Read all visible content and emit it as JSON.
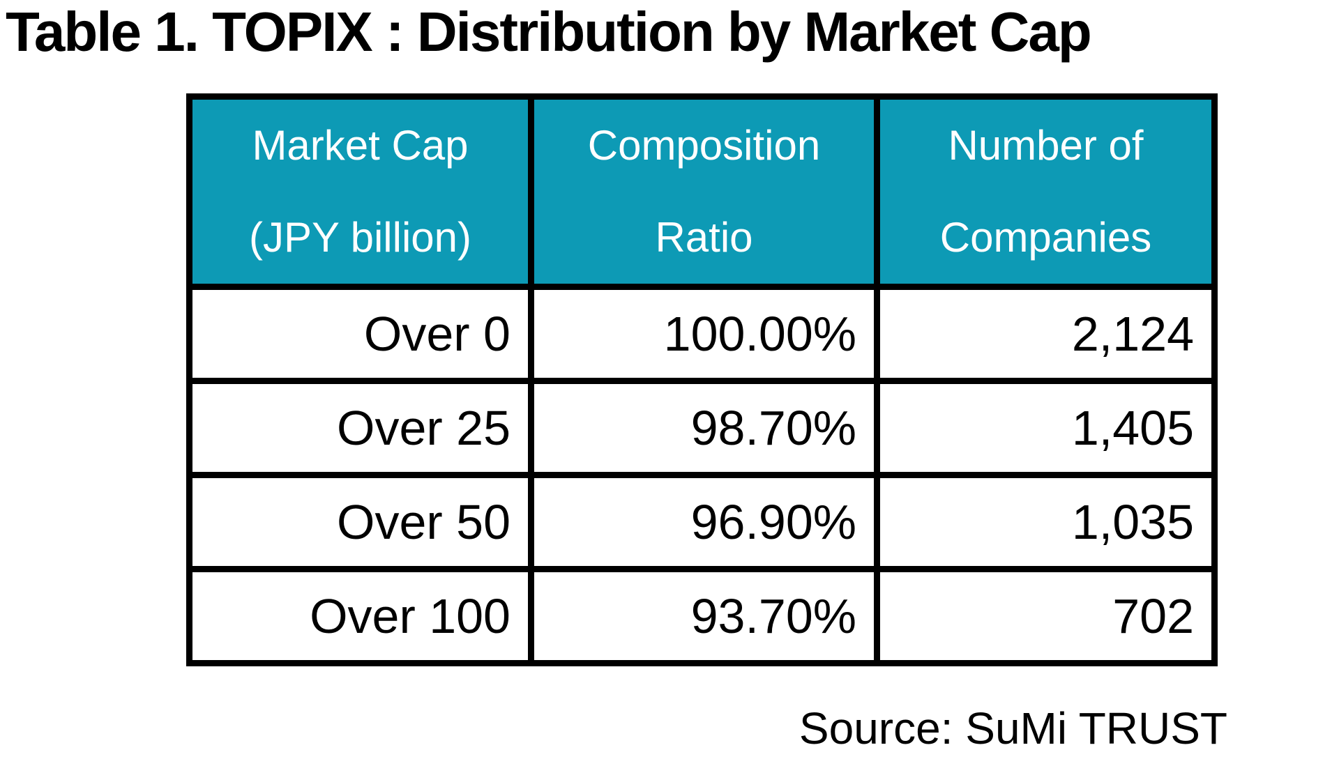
{
  "title": "Table 1. TOPIX : Distribution by Market Cap",
  "source_note": "Source: SuMi TRUST",
  "colors": {
    "page_bg": "#ffffff",
    "header_bg": "#0d9ab5",
    "header_text": "#ffffff",
    "border": "#000000",
    "text": "#000000"
  },
  "table": {
    "headers": [
      {
        "line1": "Market Cap",
        "line2": "(JPY billion)"
      },
      {
        "line1": "Composition",
        "line2": "Ratio"
      },
      {
        "line1": "Number of",
        "line2": "Companies"
      }
    ]
  },
  "chart_data": {
    "type": "table",
    "title": "Table 1. TOPIX : Distribution by Market Cap",
    "columns": [
      "Market Cap (JPY billion)",
      "Composition Ratio",
      "Number of Companies"
    ],
    "rows": [
      [
        "Over 0",
        "100.00%",
        "2,124"
      ],
      [
        "Over 25",
        "98.70%",
        "1,405"
      ],
      [
        "Over 50",
        "96.90%",
        "1,035"
      ],
      [
        "Over 100",
        "93.70%",
        "702"
      ]
    ],
    "numeric": {
      "market_cap_threshold_jpy_billion": [
        0,
        25,
        50,
        100
      ],
      "composition_ratio_pct": [
        100.0,
        98.7,
        96.9,
        93.7
      ],
      "number_of_companies": [
        2124,
        1405,
        1035,
        702
      ]
    },
    "source": "Source: SuMi TRUST"
  }
}
